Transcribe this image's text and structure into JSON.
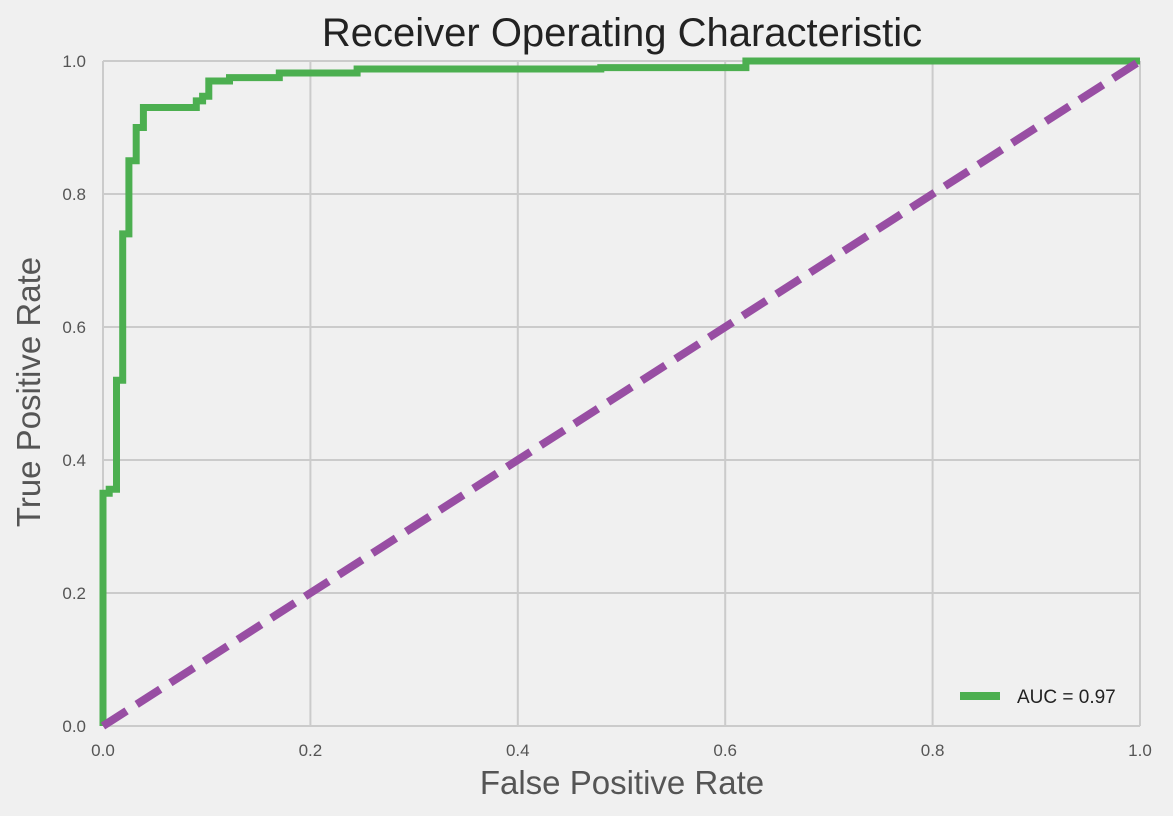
{
  "chart_data": {
    "type": "line",
    "title": "Receiver Operating Characteristic",
    "xlabel": "False Positive Rate",
    "ylabel": "True Positive Rate",
    "xlim": [
      0.0,
      1.0
    ],
    "ylim": [
      0.0,
      1.0
    ],
    "xticks": [
      "0.0",
      "0.2",
      "0.4",
      "0.6",
      "0.8",
      "1.0"
    ],
    "yticks": [
      "0.0",
      "0.2",
      "0.4",
      "0.6",
      "0.8",
      "1.0"
    ],
    "grid": true,
    "legend_position": "lower-right",
    "series": [
      {
        "name": "AUC = 0.97",
        "color": "#4caf50",
        "style": "solid",
        "x": [
          0.0,
          0.0,
          0.006,
          0.006,
          0.013,
          0.013,
          0.019,
          0.019,
          0.025,
          0.025,
          0.032,
          0.032,
          0.039,
          0.039,
          0.09,
          0.09,
          0.096,
          0.096,
          0.102,
          0.102,
          0.122,
          0.122,
          0.17,
          0.17,
          0.245,
          0.245,
          0.48,
          0.48,
          0.62,
          0.62,
          1.0
        ],
        "y": [
          0.0,
          0.35,
          0.35,
          0.356,
          0.356,
          0.52,
          0.52,
          0.74,
          0.74,
          0.85,
          0.85,
          0.9,
          0.9,
          0.93,
          0.93,
          0.94,
          0.94,
          0.947,
          0.947,
          0.97,
          0.97,
          0.975,
          0.975,
          0.982,
          0.982,
          0.988,
          0.988,
          0.99,
          0.99,
          1.0,
          1.0
        ]
      },
      {
        "name": "",
        "color": "#984ea3",
        "style": "dashed",
        "x": [
          0.0,
          1.0
        ],
        "y": [
          0.0,
          1.0
        ]
      }
    ]
  }
}
